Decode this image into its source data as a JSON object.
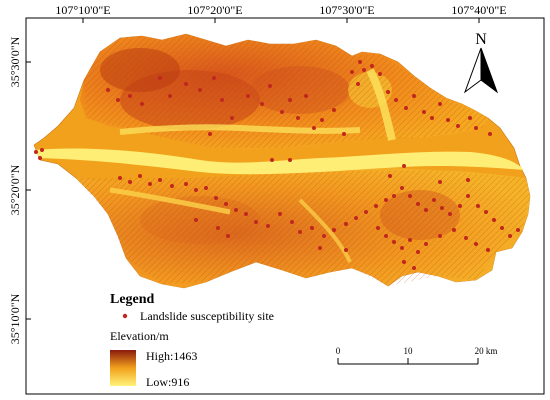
{
  "map": {
    "top_longitudes": [
      "107°10'0\"E",
      "107°20'0\"E",
      "107°30'0\"E",
      "107°40'0\"E"
    ],
    "left_latitudes": [
      "35°30'0\"N",
      "35°20'0\"N",
      "35°10'0\"N"
    ],
    "north_label": "N"
  },
  "legend": {
    "title": "Legend",
    "site_label": "Landslide susceptibility site",
    "elevation_title": "Elevation/m",
    "high_label": "High:1463",
    "low_label": "Low:916",
    "site_color": "#c0281e",
    "elevation_high_color": "#8a1a0e",
    "elevation_mid_color": "#f2a11c",
    "elevation_low_color": "#fff27a"
  },
  "scale_bar": {
    "ticks": [
      "0",
      "10",
      "20 km"
    ]
  }
}
